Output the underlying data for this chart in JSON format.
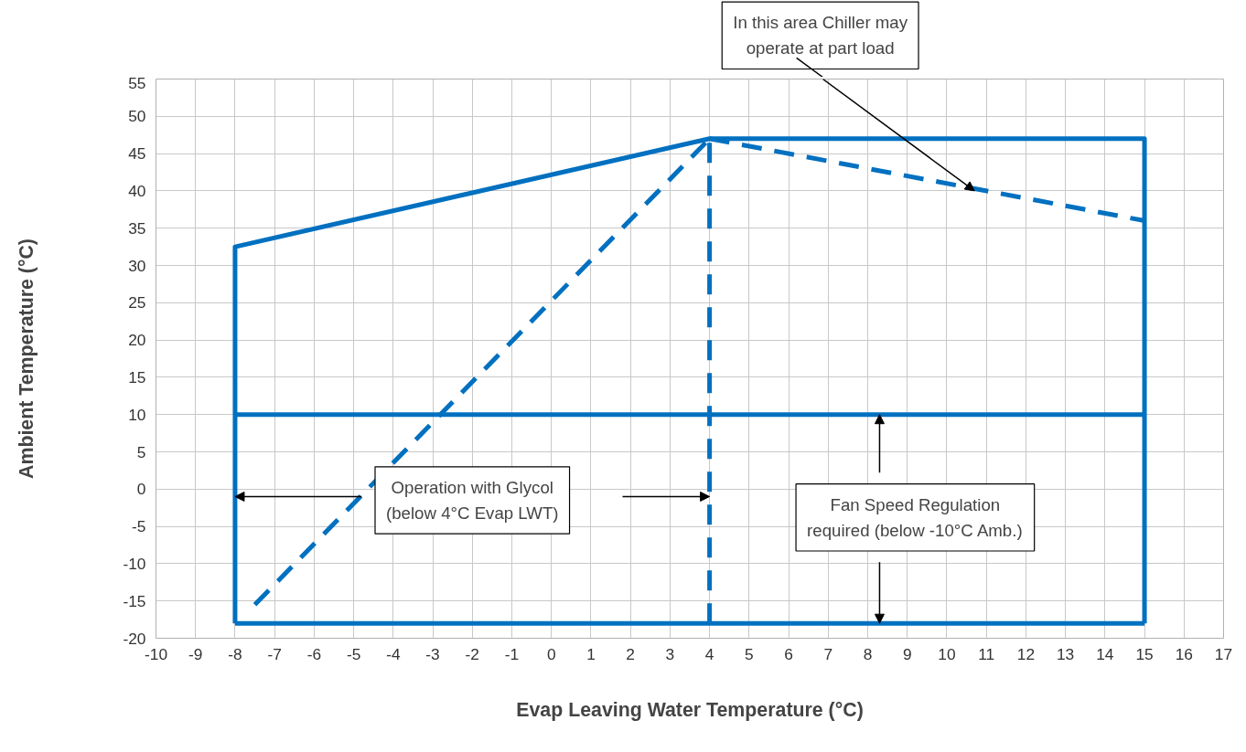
{
  "chart_data": {
    "type": "line",
    "xlabel": "Evap Leaving Water Temperature (°C)",
    "ylabel": "Ambient Temperature (°C)",
    "xlim": [
      -10,
      17
    ],
    "xticks": [
      -10,
      -9,
      -8,
      -7,
      -6,
      -5,
      -4,
      -3,
      -2,
      -1,
      0,
      1,
      2,
      3,
      4,
      5,
      6,
      7,
      8,
      9,
      10,
      11,
      12,
      13,
      14,
      15,
      16,
      17
    ],
    "ylim": [
      -20,
      55
    ],
    "yticks": [
      -20,
      -15,
      -10,
      -5,
      0,
      5,
      10,
      15,
      20,
      25,
      30,
      35,
      40,
      45,
      50,
      55
    ],
    "grid": true,
    "series": [
      {
        "color": "#0070c0",
        "line_style": "solid",
        "x": [
          -8,
          -8,
          4,
          15,
          15
        ],
        "values": [
          -18,
          32.5,
          47,
          47,
          -18
        ]
      },
      {
        "color": "#0070c0",
        "line_style": "solid",
        "x": [
          -8,
          15
        ],
        "values": [
          -18,
          -18
        ]
      },
      {
        "color": "#0070c0",
        "line_style": "solid",
        "x": [
          -8,
          15
        ],
        "values": [
          10,
          10
        ]
      },
      {
        "color": "#0070c0",
        "line_style": "dashed",
        "x": [
          4,
          4
        ],
        "values": [
          -18,
          47
        ]
      },
      {
        "color": "#0070c0",
        "line_style": "dashed",
        "x": [
          -7.5,
          4
        ],
        "values": [
          -15.5,
          47
        ]
      },
      {
        "color": "#0070c0",
        "line_style": "dashed",
        "x": [
          4,
          15
        ],
        "values": [
          47,
          36
        ]
      }
    ],
    "annotations": [
      {
        "text": "In this area Chiller may\noperate at part load",
        "x": 10.7,
        "y": 40
      },
      "Operation with Glycol\n(below 4°C Evap LWT)",
      "Fan Speed Regulation\nrequired (below -10°C Amb.)"
    ]
  }
}
